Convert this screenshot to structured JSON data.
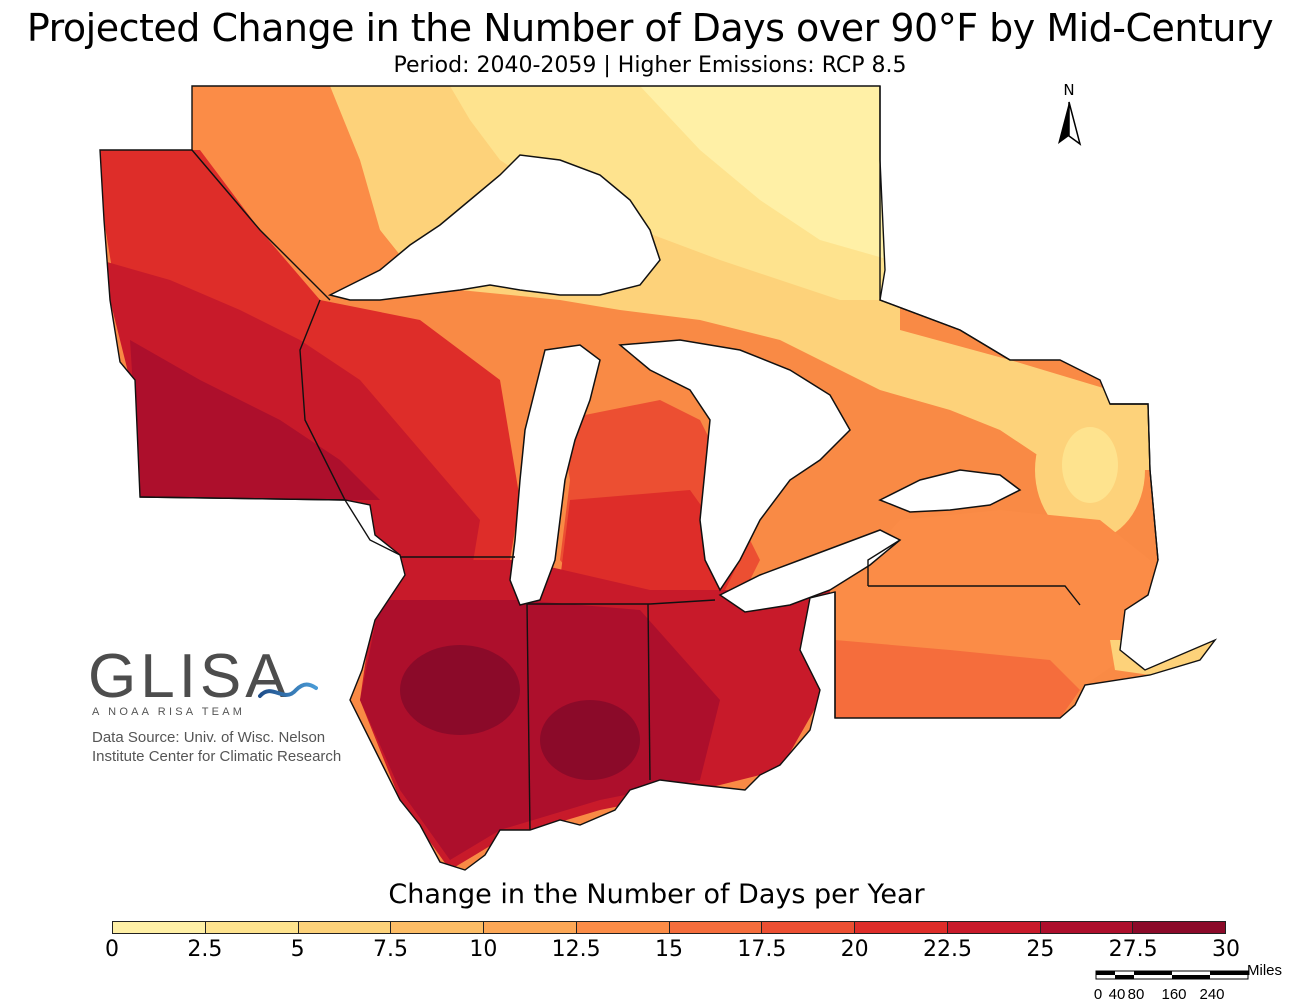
{
  "title": "Projected Change in the Number of Days over 90°F by Mid-Century",
  "subtitle": "Period: 2040-2059 | Higher Emissions: RCP 8.5",
  "north_arrow": {
    "label": "N",
    "icon": "north-arrow-icon"
  },
  "logo": {
    "wordmark": "GLISA",
    "tagline": "A NOAA RISA TEAM",
    "swoosh_color": "#2a6aa8"
  },
  "data_source": {
    "line1": "Data Source: Univ. of Wisc. Nelson",
    "line2": "Institute Center for Climatic Research"
  },
  "legend": {
    "title": "Change in the Number of Days per Year",
    "ticks": [
      "0",
      "2.5",
      "5",
      "7.5",
      "10",
      "12.5",
      "15",
      "17.5",
      "20",
      "22.5",
      "25",
      "27.5",
      "30"
    ],
    "colors": [
      "#fff0a6",
      "#fee38e",
      "#fdd27a",
      "#fdbd66",
      "#fca756",
      "#fb8c47",
      "#f56d3c",
      "#ec4f32",
      "#de2d29",
      "#c81a2a",
      "#ad0f2c",
      "#8b0a29"
    ]
  },
  "scale_bar": {
    "unit": "Miles",
    "labels": [
      "0",
      "40",
      "80",
      "160",
      "240"
    ]
  },
  "map": {
    "water_color": "#ffffff",
    "boundary_color": "#111111"
  }
}
